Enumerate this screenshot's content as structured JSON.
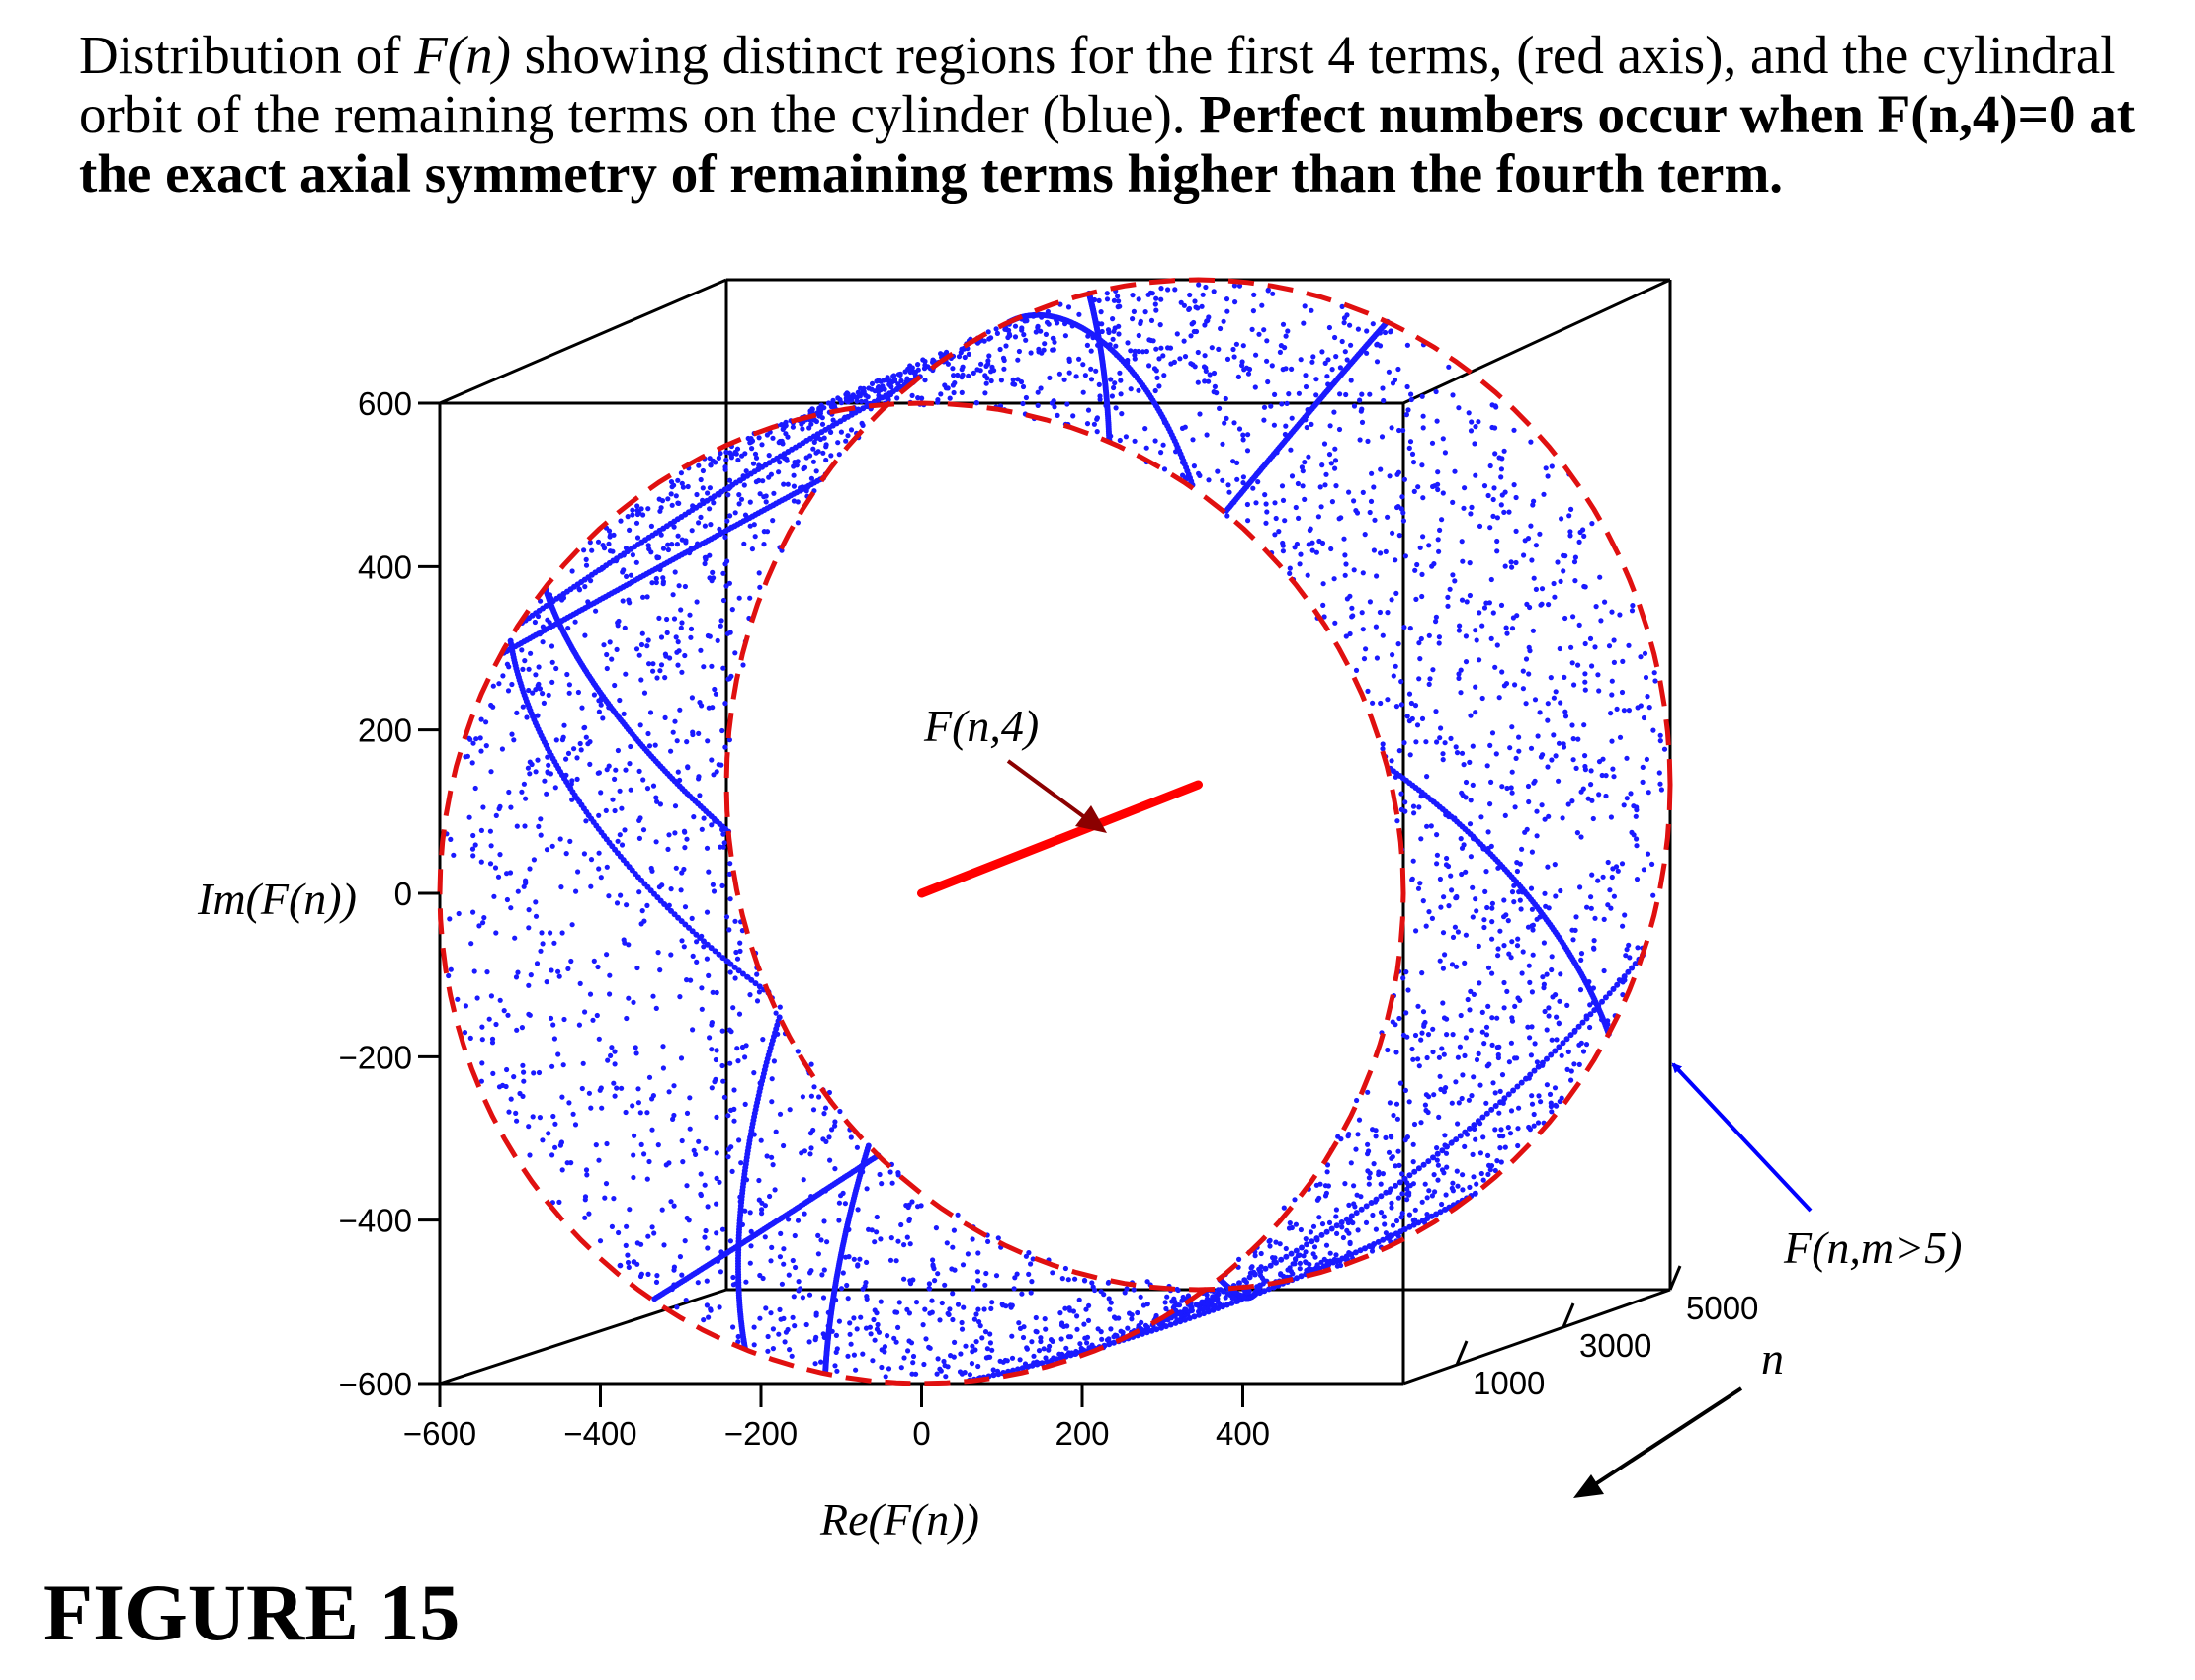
{
  "caption": {
    "part1": "Distribution of ",
    "fn": "F(n)",
    "part2": " showing distinct regions for the first 4 terms, (red axis), and the cylindral orbit of the remaining terms on the cylinder (blue).  ",
    "bold": "Perfect numbers occur when F(n,4)=0 at the exact axial symmetry of remaining terms higher than the fourth term."
  },
  "figure_label": "FIGURE 15",
  "chart_data": {
    "type": "scatter",
    "projection": "3d",
    "xlabel": "Re(F(n))",
    "ylabel": "Im(F(n))",
    "zlabel": "n",
    "xlim": [
      -600,
      600
    ],
    "ylim": [
      -600,
      600
    ],
    "zlim": [
      0,
      5000
    ],
    "x_ticks": [
      "-600",
      "-400",
      "-200",
      "0",
      "200",
      "400"
    ],
    "y_ticks": [
      "600",
      "400",
      "200",
      "0",
      "-200",
      "-400",
      "-600"
    ],
    "z_ticks": [
      "1000",
      "3000",
      "5000"
    ],
    "grid": false,
    "annotations": [
      {
        "text": "F(n,4)",
        "color": "#8b0000"
      },
      {
        "text": "F(n,m>5)",
        "color": "#0000ff"
      }
    ],
    "series": [
      {
        "name": "F(n,4)",
        "color": "#ff0000",
        "marker": "line",
        "points": [
          {
            "re": 0,
            "im": 0,
            "n": 0
          },
          {
            "re": 0,
            "im": 0,
            "n": 5000
          }
        ]
      },
      {
        "name": "F(n,m>5)",
        "color": "#0000ff",
        "marker": "dots",
        "count": 3500,
        "cylinder_radius": [
          280,
          600
        ],
        "n_range": [
          0,
          5000
        ]
      }
    ],
    "cylinder_outline": {
      "color": "#e00000",
      "style": "dashed"
    }
  }
}
